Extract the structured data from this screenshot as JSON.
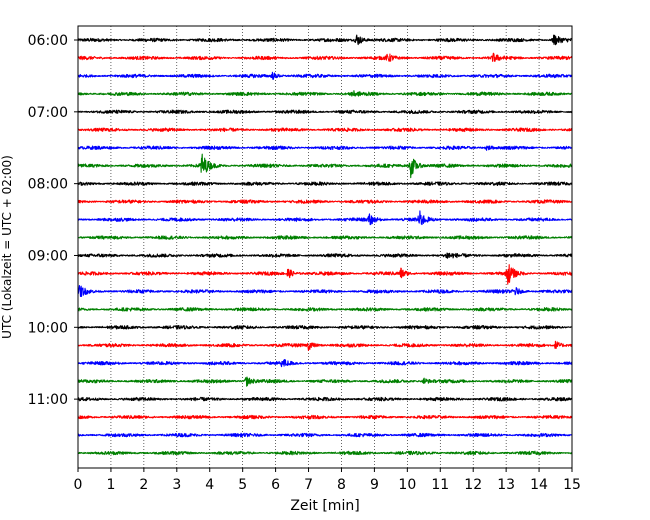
{
  "chart_data": {
    "type": "line",
    "title": "",
    "xlabel": "Zeit  [min]",
    "ylabel": "UTC (Lokalzeit = UTC + 02:00)",
    "xlim": [
      0,
      15
    ],
    "x_ticks": [
      "0",
      "1",
      "2",
      "3",
      "4",
      "5",
      "6",
      "7",
      "8",
      "9",
      "10",
      "11",
      "12",
      "13",
      "14",
      "15"
    ],
    "y_tick_labels": [
      "06:00",
      "07:00",
      "08:00",
      "09:00",
      "10:00",
      "11:00"
    ],
    "y_range": [
      "06:00",
      "11:45"
    ],
    "trace_interval_minutes": 15,
    "trace_count": 24,
    "grid": "vertical dotted lines at each minute",
    "legend": "none",
    "colors": [
      "#000000",
      "#ff0000",
      "#0000ff",
      "#008000"
    ],
    "traces": [
      {
        "start": "06:00",
        "color": "#000000",
        "events": [
          {
            "t": 8.45,
            "amp": 0.7
          },
          {
            "t": 14.45,
            "amp": 0.6
          }
        ]
      },
      {
        "start": "06:15",
        "color": "#ff0000",
        "events": [
          {
            "t": 9.4,
            "amp": 0.4
          },
          {
            "t": 12.6,
            "amp": 0.4
          }
        ]
      },
      {
        "start": "06:30",
        "color": "#0000ff",
        "events": [
          {
            "t": 5.9,
            "amp": 0.35
          }
        ]
      },
      {
        "start": "06:45",
        "color": "#008000",
        "events": [
          {
            "t": 8.3,
            "amp": 0.3
          }
        ]
      },
      {
        "start": "07:00",
        "color": "#000000",
        "events": []
      },
      {
        "start": "07:15",
        "color": "#ff0000",
        "events": []
      },
      {
        "start": "07:30",
        "color": "#0000ff",
        "events": [
          {
            "t": 12.4,
            "amp": 0.3
          }
        ]
      },
      {
        "start": "07:45",
        "color": "#008000",
        "events": [
          {
            "t": 3.75,
            "amp": 1.3
          },
          {
            "t": 10.1,
            "amp": 1.2
          }
        ]
      },
      {
        "start": "08:00",
        "color": "#000000",
        "events": []
      },
      {
        "start": "08:15",
        "color": "#ff0000",
        "events": []
      },
      {
        "start": "08:30",
        "color": "#0000ff",
        "events": [
          {
            "t": 8.85,
            "amp": 0.6
          },
          {
            "t": 10.35,
            "amp": 0.9
          }
        ]
      },
      {
        "start": "08:45",
        "color": "#008000",
        "events": []
      },
      {
        "start": "09:00",
        "color": "#000000",
        "events": [
          {
            "t": 11.2,
            "amp": 0.35
          }
        ]
      },
      {
        "start": "09:15",
        "color": "#ff0000",
        "events": [
          {
            "t": 6.35,
            "amp": 0.6
          },
          {
            "t": 9.8,
            "amp": 0.5
          },
          {
            "t": 13.05,
            "amp": 1.1
          }
        ]
      },
      {
        "start": "09:30",
        "color": "#0000ff",
        "events": [
          {
            "t": 0.05,
            "amp": 0.55
          },
          {
            "t": 13.25,
            "amp": 0.45
          }
        ]
      },
      {
        "start": "09:45",
        "color": "#008000",
        "events": []
      },
      {
        "start": "10:00",
        "color": "#000000",
        "events": []
      },
      {
        "start": "10:15",
        "color": "#ff0000",
        "events": [
          {
            "t": 7.0,
            "amp": 0.5
          },
          {
            "t": 14.5,
            "amp": 0.45
          }
        ]
      },
      {
        "start": "10:30",
        "color": "#0000ff",
        "events": [
          {
            "t": 6.2,
            "amp": 0.4
          }
        ]
      },
      {
        "start": "10:45",
        "color": "#008000",
        "events": [
          {
            "t": 5.1,
            "amp": 0.55
          },
          {
            "t": 10.5,
            "amp": 0.35
          }
        ]
      },
      {
        "start": "11:00",
        "color": "#000000",
        "events": []
      },
      {
        "start": "11:15",
        "color": "#ff0000",
        "events": []
      },
      {
        "start": "11:30",
        "color": "#0000ff",
        "events": []
      },
      {
        "start": "11:45",
        "color": "#008000",
        "events": []
      }
    ]
  }
}
